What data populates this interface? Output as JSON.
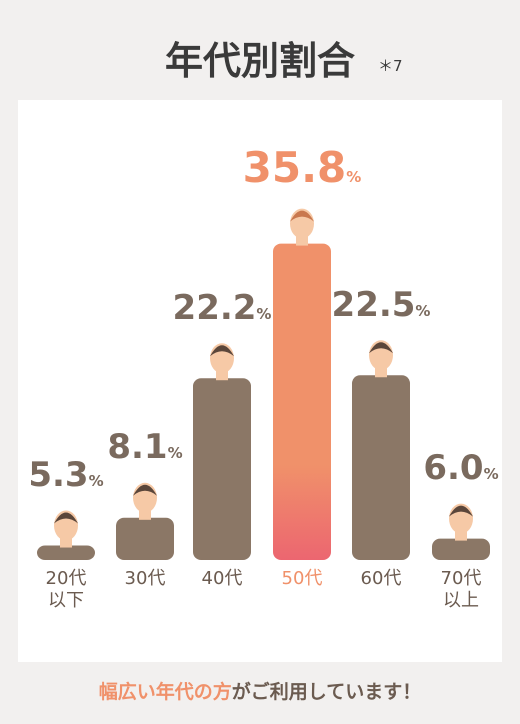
{
  "chart_data": {
    "type": "bar",
    "title": "年代別割合",
    "note": "＊7",
    "categories": [
      "20代\n以下",
      "30代",
      "40代",
      "50代",
      "60代",
      "70代\n以上"
    ],
    "values": [
      5.3,
      8.1,
      22.2,
      35.8,
      22.5,
      6.0
    ],
    "value_labels": [
      "5.3",
      "8.1",
      "22.2",
      "35.8",
      "22.5",
      "6.0"
    ],
    "unit": "%",
    "colors": [
      "#8b7766",
      "#8b7766",
      "#8b7766",
      "#f0916a",
      "#8b7766",
      "#8b7766"
    ],
    "highlight_color": "#f0916a",
    "footer_highlight": "幅広い年代の方",
    "footer_rest": "がご利用しています！"
  }
}
